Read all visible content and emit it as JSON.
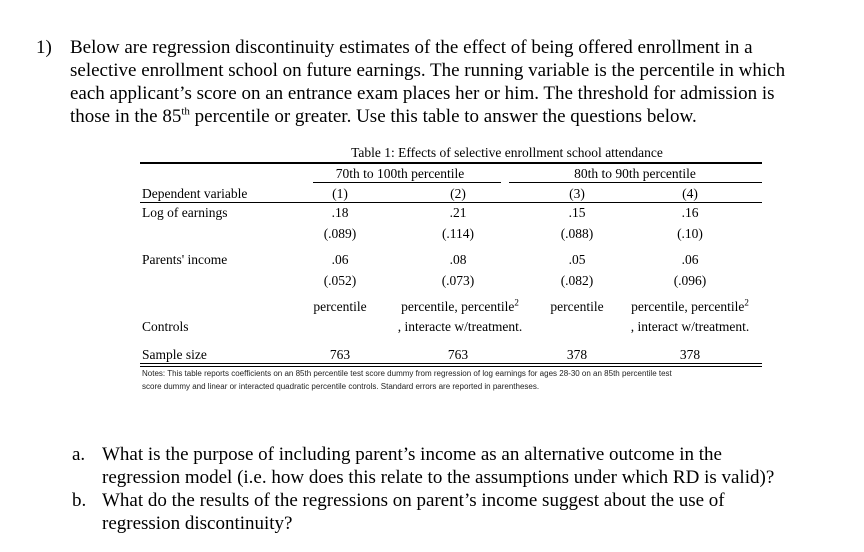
{
  "question": {
    "number": "1)",
    "lines": [
      "Below are regression discontinuity estimates of the effect of being offered enrollment in a",
      "selective enrollment school on future earnings. The running variable is the percentile in which",
      "each applicant’s score on an entrance exam places her or him. The threshold for admission is",
      "those in the 85",
      "th",
      " percentile or greater. Use this table to answer the questions below."
    ]
  },
  "table": {
    "title": "Table 1: Effects of selective enrollment school attendance",
    "groups": [
      "70th to 100th percentile",
      "80th to 90th percentile"
    ],
    "row_header": "Dependent variable",
    "columns": [
      "(1)",
      "(2)",
      "(3)",
      "(4)"
    ],
    "rows": [
      {
        "label": "Log of earnings",
        "coef": [
          ".18",
          ".21",
          ".15",
          ".16"
        ],
        "se": [
          "(.089)",
          "(.114)",
          "(.088)",
          "(.10)"
        ]
      },
      {
        "label": "Parents' income",
        "coef": [
          ".06",
          ".08",
          ".05",
          ".06"
        ],
        "se": [
          "(.052)",
          "(.073)",
          "(.082)",
          "(.096)"
        ]
      }
    ],
    "controls": {
      "label": "Controls",
      "line1": [
        "percentile",
        "percentile, percentile",
        "percentile",
        "percentile, percentile"
      ],
      "overlap": [
        ", interacte",
        ", interact"
      ],
      "sup": "2",
      "line2": [
        "",
        "w/treatment.",
        "",
        "w/treatment."
      ]
    },
    "sample": {
      "label": "Sample size",
      "values": [
        "763",
        "763",
        "378",
        "378"
      ]
    },
    "notes": [
      "Notes: This table reports coefficients on an 85th percentile test score dummy from regression of log earnings for ages 28-30 on an 85th percentile test",
      "score dummy and linear or interacted quadratic percentile controls. Standard errors are reported in parentheses."
    ]
  },
  "subquestions": [
    {
      "letter": "a.",
      "lines": [
        "What is the purpose of including parent’s income as an alternative outcome in the",
        "regression model (i.e. how does this relate to the assumptions under which RD is valid)?"
      ]
    },
    {
      "letter": "b.",
      "lines": [
        "What do the results of the regressions on parent’s income suggest about the use of",
        "regression discontinuity?"
      ]
    }
  ]
}
